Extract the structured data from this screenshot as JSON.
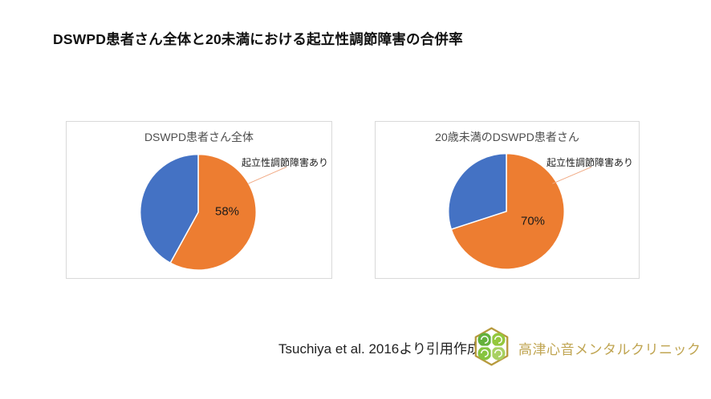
{
  "page": {
    "title": "DSWPD患者さん全体と20未満における起立性調節障害の合併率",
    "source_note": "Tsuchiya et al. 2016より引用作成",
    "clinic_name": "高津心音メンタルクリニック"
  },
  "colors": {
    "slice_orange": "#ED7D31",
    "slice_blue": "#4472C4",
    "panel_border": "#D9D9D9",
    "chart_title_text": "#4D4D4D",
    "leader_line": "#F1A983",
    "logo_gold": "#B79A3D",
    "clinic_text_gold": "#C0A552"
  },
  "chart_data": [
    {
      "type": "pie",
      "title": "DSWPD患者さん全体",
      "legend": "none",
      "start_angle_deg": 0,
      "slices": [
        {
          "label": "起立性調節障害あり",
          "value": 58,
          "data_label": "58%",
          "color": "#ED7D31"
        },
        {
          "label": "",
          "value": 42,
          "data_label": "",
          "color": "#4472C4"
        }
      ]
    },
    {
      "type": "pie",
      "title": "20歳未満のDSWPD患者さん",
      "legend": "none",
      "start_angle_deg": 0,
      "slices": [
        {
          "label": "起立性調節障害あり",
          "value": 70,
          "data_label": "70%",
          "color": "#ED7D31"
        },
        {
          "label": "",
          "value": 30,
          "data_label": "",
          "color": "#4472C4"
        }
      ]
    }
  ]
}
